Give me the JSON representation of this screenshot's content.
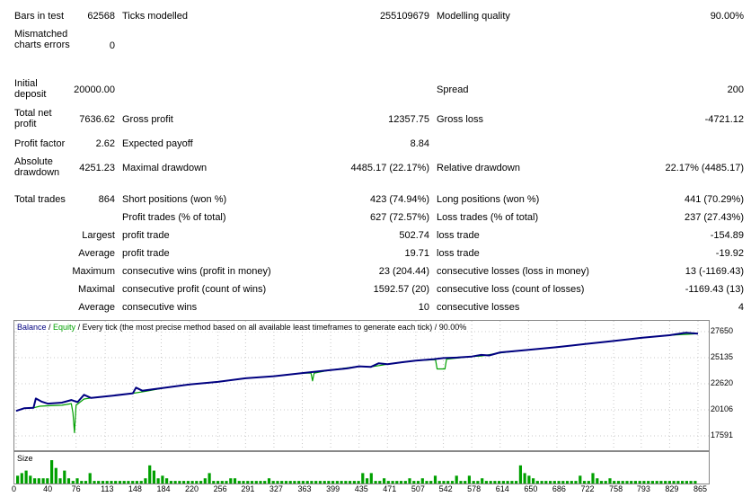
{
  "stats": {
    "bars_label": "Bars in test",
    "bars_value": "62568",
    "ticks_label": "Ticks modelled",
    "ticks_value": "255109679",
    "quality_label": "Modelling quality",
    "quality_value": "90.00%",
    "mismatch_label": "Mismatched charts errors",
    "mismatch_value": "0",
    "deposit_label": "Initial deposit",
    "deposit_value": "20000.00",
    "spread_label": "Spread",
    "spread_value": "200",
    "netprofit_label": "Total net profit",
    "netprofit_value": "7636.62",
    "grossprofit_label": "Gross profit",
    "grossprofit_value": "12357.75",
    "grossloss_label": "Gross loss",
    "grossloss_value": "-4721.12",
    "pf_label": "Profit factor",
    "pf_value": "2.62",
    "ep_label": "Expected payoff",
    "ep_value": "8.84",
    "absdd_label": "Absolute drawdown",
    "absdd_value": "4251.23",
    "maxdd_label": "Maximal drawdown",
    "maxdd_value": "4485.17 (22.17%)",
    "reldd_label": "Relative drawdown",
    "reldd_value": "22.17% (4485.17)",
    "trades_label": "Total trades",
    "trades_value": "864",
    "short_label": "Short positions (won %)",
    "short_value": "423 (74.94%)",
    "long_label": "Long positions (won %)",
    "long_value": "441 (70.29%)",
    "ptrades_label": "Profit trades (% of total)",
    "ptrades_value": "627 (72.57%)",
    "ltrades_label": "Loss trades (% of total)",
    "ltrades_value": "237 (27.43%)",
    "largest_label": "Largest",
    "largest_pt_label": "profit trade",
    "largest_pt_value": "502.74",
    "largest_lt_label": "loss trade",
    "largest_lt_value": "-154.89",
    "average_label": "Average",
    "average_pt_label": "profit trade",
    "average_pt_value": "19.71",
    "average_lt_label": "loss trade",
    "average_lt_value": "-19.92",
    "maximum_label": "Maximum",
    "max_cw_label": "consecutive wins (profit in money)",
    "max_cw_value": "23 (204.44)",
    "max_cl_label": "consecutive losses (loss in money)",
    "max_cl_value": "13 (-1169.43)",
    "maximal_label": "Maximal",
    "mxl_cp_label": "consecutive profit (count of wins)",
    "mxl_cp_value": "1592.57 (20)",
    "mxl_cl_label": "consecutive loss (count of losses)",
    "mxl_cl_value": "-1169.43 (13)",
    "avg2_label": "Average",
    "avg_cw_label": "consecutive wins",
    "avg_cw_value": "10",
    "avg_cl_label": "consecutive losses",
    "avg_cl_value": "4"
  },
  "chart_data": {
    "type": "line",
    "legend": {
      "balance": "Balance",
      "sep1": " / ",
      "equity": "Equity",
      "desc": " / Every tick (the most precise method based on all available least timeframes to generate each tick) / 90.00%"
    },
    "colors": {
      "balance": "#000080",
      "equity": "#00a000",
      "volume": "#00a000",
      "legend_balance": "#000080",
      "legend_equity": "#00a000"
    },
    "ylim": [
      17591,
      27650
    ],
    "y_ticks": [
      "27650",
      "25135",
      "22620",
      "20106",
      "17591"
    ],
    "x_ticks": [
      "0",
      "40",
      "76",
      "113",
      "148",
      "184",
      "220",
      "256",
      "291",
      "327",
      "363",
      "399",
      "435",
      "471",
      "507",
      "542",
      "578",
      "614",
      "650",
      "686",
      "722",
      "758",
      "793",
      "829",
      "865"
    ],
    "volume_label": "Size",
    "balance": [
      [
        0,
        20000
      ],
      [
        10,
        20250
      ],
      [
        22,
        20300
      ],
      [
        25,
        21200
      ],
      [
        32,
        20900
      ],
      [
        40,
        20700
      ],
      [
        58,
        20800
      ],
      [
        70,
        21050
      ],
      [
        72,
        21000
      ],
      [
        78,
        20850
      ],
      [
        86,
        21550
      ],
      [
        95,
        21250
      ],
      [
        120,
        21450
      ],
      [
        148,
        21700
      ],
      [
        152,
        22250
      ],
      [
        160,
        21950
      ],
      [
        190,
        22250
      ],
      [
        220,
        22550
      ],
      [
        256,
        22800
      ],
      [
        291,
        23150
      ],
      [
        327,
        23350
      ],
      [
        363,
        23650
      ],
      [
        399,
        23950
      ],
      [
        420,
        24100
      ],
      [
        435,
        24300
      ],
      [
        450,
        24250
      ],
      [
        460,
        24600
      ],
      [
        471,
        24500
      ],
      [
        490,
        24700
      ],
      [
        507,
        24850
      ],
      [
        530,
        25000
      ],
      [
        542,
        25100
      ],
      [
        560,
        25150
      ],
      [
        578,
        25250
      ],
      [
        590,
        25400
      ],
      [
        600,
        25350
      ],
      [
        614,
        25650
      ],
      [
        630,
        25750
      ],
      [
        650,
        25900
      ],
      [
        686,
        26150
      ],
      [
        722,
        26450
      ],
      [
        758,
        26750
      ],
      [
        793,
        27050
      ],
      [
        829,
        27300
      ],
      [
        850,
        27550
      ],
      [
        865,
        27450
      ]
    ],
    "equity": [
      [
        0,
        20000
      ],
      [
        10,
        20250
      ],
      [
        22,
        20300
      ],
      [
        30,
        20450
      ],
      [
        40,
        20500
      ],
      [
        58,
        20550
      ],
      [
        70,
        20700
      ],
      [
        72,
        19800
      ],
      [
        74,
        17900
      ],
      [
        76,
        20550
      ],
      [
        86,
        21150
      ],
      [
        95,
        21250
      ],
      [
        120,
        21450
      ],
      [
        148,
        21700
      ],
      [
        165,
        21900
      ],
      [
        190,
        22250
      ],
      [
        220,
        22550
      ],
      [
        256,
        22800
      ],
      [
        291,
        23150
      ],
      [
        327,
        23350
      ],
      [
        363,
        23650
      ],
      [
        374,
        23650
      ],
      [
        376,
        22900
      ],
      [
        378,
        23650
      ],
      [
        399,
        23950
      ],
      [
        435,
        24300
      ],
      [
        450,
        24250
      ],
      [
        471,
        24500
      ],
      [
        507,
        24850
      ],
      [
        532,
        24950
      ],
      [
        534,
        24050
      ],
      [
        544,
        24050
      ],
      [
        546,
        25000
      ],
      [
        578,
        25250
      ],
      [
        590,
        25300
      ],
      [
        614,
        25600
      ],
      [
        650,
        25900
      ],
      [
        686,
        26150
      ],
      [
        722,
        26450
      ],
      [
        758,
        26750
      ],
      [
        793,
        27050
      ],
      [
        829,
        27300
      ],
      [
        865,
        27450
      ]
    ],
    "volume": [
      3,
      4,
      5,
      3,
      2,
      2,
      2,
      2,
      9,
      6,
      2,
      5,
      2,
      1,
      2,
      1,
      1,
      4,
      1,
      1,
      1,
      1,
      1,
      1,
      1,
      1,
      1,
      1,
      1,
      1,
      2,
      7,
      5,
      2,
      3,
      2,
      1,
      1,
      1,
      1,
      1,
      1,
      1,
      1,
      2,
      4,
      1,
      1,
      1,
      1,
      2,
      2,
      1,
      1,
      1,
      1,
      1,
      1,
      1,
      2,
      1,
      1,
      1,
      1,
      1,
      1,
      1,
      1,
      1,
      1,
      1,
      1,
      1,
      1,
      1,
      1,
      1,
      1,
      1,
      1,
      1,
      4,
      2,
      4,
      1,
      1,
      2,
      1,
      1,
      1,
      1,
      1,
      2,
      1,
      1,
      2,
      1,
      1,
      3,
      1,
      1,
      1,
      1,
      3,
      1,
      1,
      3,
      1,
      1,
      2,
      1,
      1,
      1,
      1,
      1,
      1,
      1,
      1,
      7,
      4,
      3,
      2,
      1,
      1,
      1,
      1,
      1,
      1,
      1,
      1,
      1,
      1,
      3,
      1,
      1,
      4,
      2,
      1,
      1,
      2,
      1,
      1,
      1,
      1,
      1,
      1,
      1,
      1,
      1,
      1,
      1,
      1,
      1,
      1,
      1,
      1,
      1,
      1,
      1,
      1
    ]
  }
}
